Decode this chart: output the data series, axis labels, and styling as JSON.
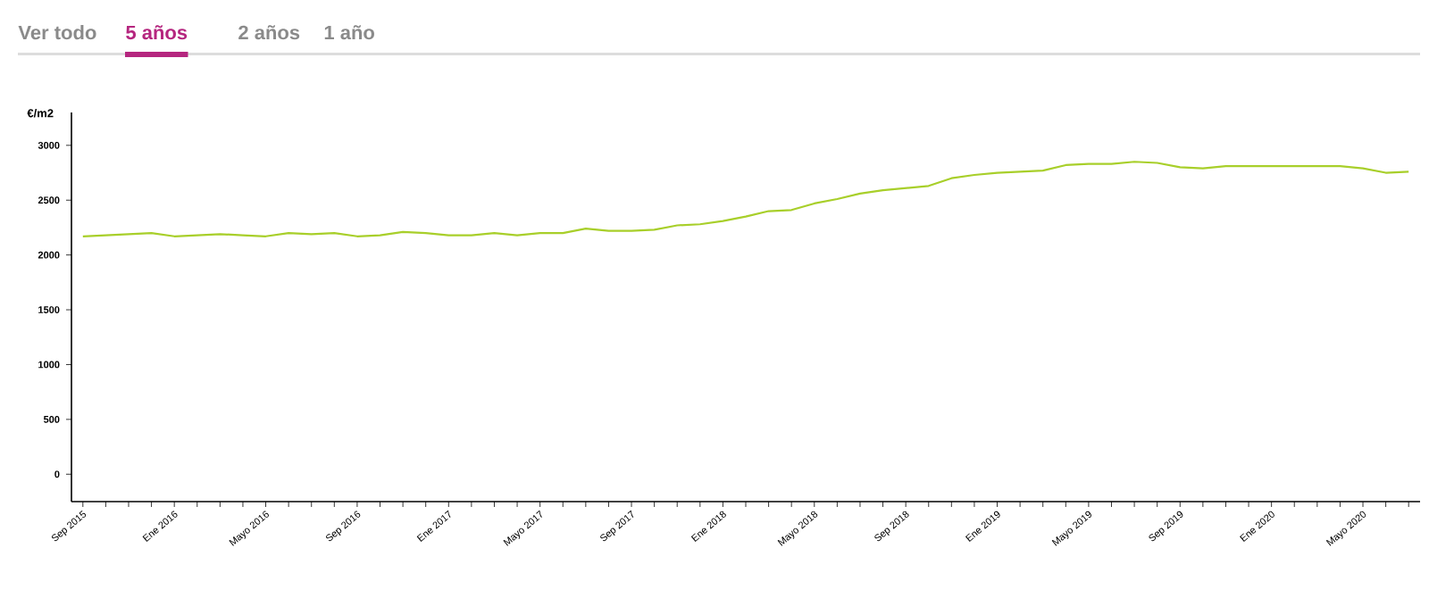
{
  "chart_data": {
    "type": "line",
    "annotations": [
      "Ver todo",
      "5 años",
      "2 años",
      "1 año"
    ],
    "ylabel": "€/m2",
    "categories": [
      "Sep 2015",
      null,
      null,
      null,
      "Ene 2016",
      null,
      null,
      null,
      "Mayo 2016",
      null,
      null,
      null,
      "Sep 2016",
      null,
      null,
      null,
      "Ene 2017",
      null,
      null,
      null,
      "Mayo 2017",
      null,
      null,
      null,
      "Sep 2017",
      null,
      null,
      null,
      "Ene 2018",
      null,
      null,
      null,
      "Mayo 2018",
      null,
      null,
      null,
      "Sep 2018",
      null,
      null,
      null,
      "Ene 2019",
      null,
      null,
      null,
      "Mayo 2019",
      null,
      null,
      null,
      "Sep 2019",
      null,
      null,
      null,
      "Ene 2020",
      null,
      null,
      null,
      "Mayo 2020",
      null,
      null
    ],
    "series": [
      {
        "color": "#a8cf2a",
        "values": [
          2170,
          2180,
          2190,
          2200,
          2170,
          2180,
          2190,
          2180,
          2170,
          2200,
          2190,
          2200,
          2170,
          2180,
          2210,
          2200,
          2180,
          2180,
          2200,
          2180,
          2200,
          2200,
          2240,
          2220,
          2220,
          2230,
          2270,
          2280,
          2310,
          2350,
          2400,
          2410,
          2470,
          2510,
          2560,
          2590,
          2610,
          2630,
          2700,
          2730,
          2750,
          2760,
          2770,
          2820,
          2830,
          2830,
          2850,
          2840,
          2800,
          2790,
          2810,
          2810,
          2810,
          2810,
          2810,
          2810,
          2790,
          2750,
          2760
        ]
      }
    ],
    "ylim": [
      -250,
      3300
    ],
    "yticks": [
      0,
      500,
      1000,
      1500,
      2000,
      2500,
      3000
    ],
    "marker": "none",
    "line_style": "solid"
  }
}
